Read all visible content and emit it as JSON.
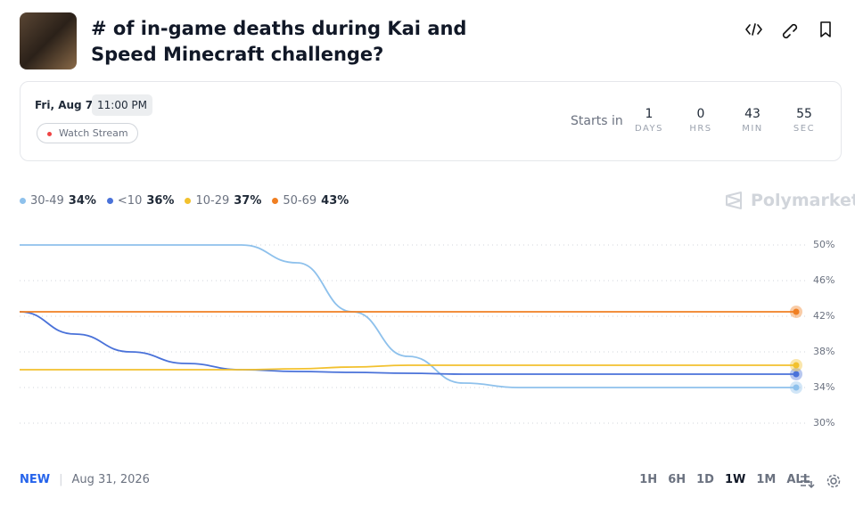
{
  "header": {
    "title": "# of in-game deaths during Kai and Speed Minecraft challenge?"
  },
  "event": {
    "date": "Fri, Aug 7",
    "time": "11:00 PM",
    "watch": "Watch Stream",
    "starts_in": "Starts in",
    "countdown": [
      {
        "value": "1",
        "unit": "DAYS"
      },
      {
        "value": "0",
        "unit": "HRS"
      },
      {
        "value": "43",
        "unit": "MIN"
      },
      {
        "value": "55",
        "unit": "SEC"
      }
    ]
  },
  "brand": "Polymarket",
  "chart_data": {
    "type": "line",
    "categories": [
      null,
      null,
      null,
      null,
      null,
      null,
      null,
      null,
      null,
      null,
      null,
      null,
      null,
      null,
      null
    ],
    "ylim": [
      28,
      52
    ],
    "yticks": [
      {
        "value": 30,
        "label": "30%"
      },
      {
        "value": 34,
        "label": "34%"
      },
      {
        "value": 38,
        "label": "38%"
      },
      {
        "value": 42,
        "label": "42%"
      },
      {
        "value": 46,
        "label": "46%"
      },
      {
        "value": 50,
        "label": "50%"
      }
    ],
    "grid": true,
    "series": [
      {
        "name": "30-49",
        "color": "#8ec1ec",
        "current": {
          "value": 34,
          "label": "34%"
        },
        "values": [
          50,
          50,
          50,
          50,
          50,
          48,
          42.5,
          37.5,
          34.5,
          34,
          34,
          34,
          34,
          34,
          34
        ]
      },
      {
        "name": "<10",
        "color": "#4a72d9",
        "current": {
          "value": 36,
          "label": "36%"
        },
        "values": [
          42.5,
          40,
          38,
          36.7,
          36,
          35.8,
          35.7,
          35.6,
          35.5,
          35.5,
          35.5,
          35.5,
          35.5,
          35.5,
          35.5
        ]
      },
      {
        "name": "10-29",
        "color": "#f2c12e",
        "current": {
          "value": 37,
          "label": "37%"
        },
        "values": [
          36,
          36,
          36,
          36,
          36,
          36.1,
          36.3,
          36.5,
          36.5,
          36.5,
          36.5,
          36.5,
          36.5,
          36.5,
          36.5
        ]
      },
      {
        "name": "50-69",
        "color": "#f07f22",
        "current": {
          "value": 43,
          "label": "43%"
        },
        "values": [
          42.5,
          42.5,
          42.5,
          42.5,
          42.5,
          42.5,
          42.5,
          42.5,
          42.5,
          42.5,
          42.5,
          42.5,
          42.5,
          42.5,
          42.5
        ]
      }
    ]
  },
  "footer": {
    "badge": "NEW",
    "end_date": "Aug 31, 2026",
    "ranges": [
      "1H",
      "6H",
      "1D",
      "1W",
      "1M",
      "ALL"
    ],
    "active": "1W"
  }
}
